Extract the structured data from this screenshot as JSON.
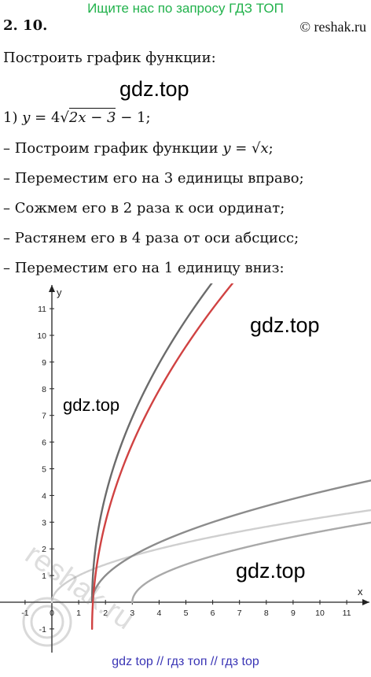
{
  "banner": "Ищите нас по запросу ГДЗ ТОП",
  "problem_number": "2. 10.",
  "site": "© reshak.ru",
  "task": "Построить график функции:",
  "watermarks": [
    "gdz.top",
    "gdz.top",
    "gdz.top",
    "gdz.top"
  ],
  "item_label": "1)",
  "formula": {
    "lhs": "y",
    "coef": "4",
    "radicand": "2x − 3",
    "tail": "− 1;"
  },
  "steps": [
    {
      "text": "– Построим график функции ",
      "math": "y = √x",
      "end": ";"
    },
    {
      "text": "– Переместим его на 3 единицы вправо;",
      "math": "",
      "end": ""
    },
    {
      "text": "– Сожмем его в 2 раза к оси ординат;",
      "math": "",
      "end": ""
    },
    {
      "text": "– Растянем его в 4 раза от оси абсцисс;",
      "math": "",
      "end": ""
    },
    {
      "text": "– Переместим его на 1 единицу вниз:",
      "math": "",
      "end": ""
    }
  ],
  "chart_data": {
    "type": "line",
    "xlabel": "x",
    "ylabel": "y",
    "xlim": [
      -1.6,
      12.1
    ],
    "ylim": [
      -1.5,
      11.9
    ],
    "x_ticks": [
      -1,
      0,
      1,
      2,
      3,
      4,
      5,
      6,
      7,
      8,
      9,
      10,
      11
    ],
    "y_ticks": [
      -1,
      1,
      2,
      3,
      4,
      5,
      6,
      7,
      8,
      9,
      10,
      11
    ],
    "x_tick_labels": [
      "-1",
      "0",
      "1",
      "2",
      "3",
      "4",
      "5",
      "6",
      "7",
      "8",
      "9",
      "10",
      "11"
    ],
    "y_tick_labels": [
      "-1",
      "1",
      "2",
      "3",
      "4",
      "5",
      "6",
      "7",
      "8",
      "9",
      "10",
      "11"
    ],
    "grid": false,
    "series": [
      {
        "function": "sqrt(x)",
        "color": "#cfcfcf",
        "x_start": 0,
        "y_shift": 0,
        "coef": 1,
        "inner": 1,
        "shift": 0
      },
      {
        "function": "sqrt(x-3)",
        "color": "#a9a9a9",
        "x_start": 3,
        "coef": 1,
        "inner": 1,
        "shift": 3,
        "y_shift": 0
      },
      {
        "function": "sqrt(2x-3)",
        "color": "#8c8c8c",
        "x_start": 1.5,
        "coef": 1,
        "inner": 2,
        "shift": 1.5,
        "y_shift": 0
      },
      {
        "function": "4*sqrt(2x-3)",
        "color": "#6b6b6b",
        "x_start": 1.5,
        "coef": 4,
        "inner": 2,
        "shift": 1.5,
        "y_shift": 0
      },
      {
        "function": "4*sqrt(2x-3)-1",
        "color": "#d04242",
        "x_start": 1.5,
        "coef": 4,
        "inner": 2,
        "shift": 1.5,
        "y_shift": -1
      }
    ]
  },
  "footer": "gdz top  //  гдз топ  //  гдз top"
}
